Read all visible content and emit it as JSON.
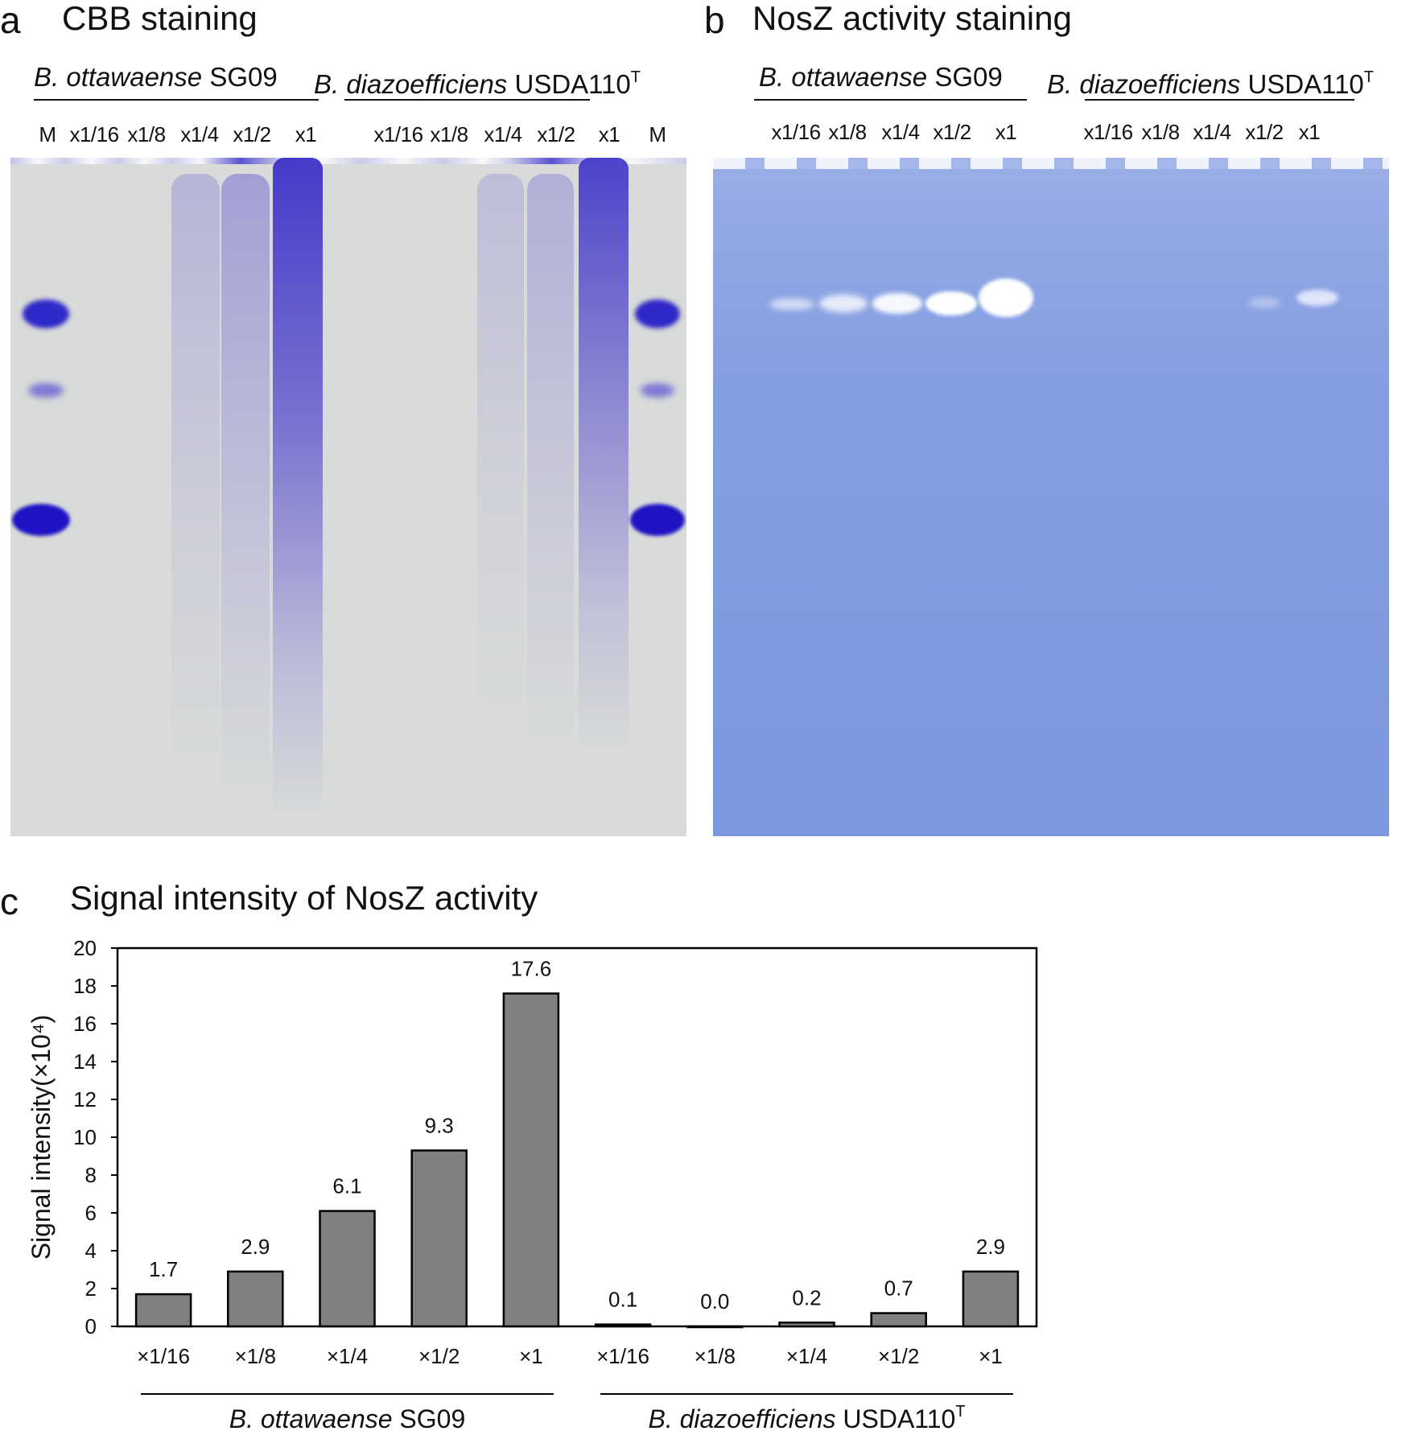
{
  "colors": {
    "cbb_gel_bg": "#d7dbd9",
    "cbb_band": "#2a1fc9",
    "nosz_gel_bg": "#7b98df",
    "nosz_band": "#ffffff",
    "bar_fill": "#808080",
    "bar_stroke": "#000000"
  },
  "panel_a": {
    "letter": "a",
    "title": "CBB staining",
    "group1": {
      "species": "B. ottawaense",
      "strain": "SG09"
    },
    "group2": {
      "species": "B. diazoefficiens",
      "strain": "USDA110",
      "superscript": "T"
    },
    "lanes": [
      "M",
      "x1/16",
      "x1/8",
      "x1/4",
      "x1/2",
      "x1",
      "x1/16",
      "x1/8",
      "x1/4",
      "x1/2",
      "x1",
      "M"
    ]
  },
  "panel_b": {
    "letter": "b",
    "title": "NosZ activity staining",
    "group1": {
      "species": "B. ottawaense",
      "strain": "SG09"
    },
    "group2": {
      "species": "B. diazoefficiens",
      "strain": "USDA110",
      "superscript": "T"
    },
    "lanes": [
      "x1/16",
      "x1/8",
      "x1/4",
      "x1/2",
      "x1",
      "x1/16",
      "x1/8",
      "x1/4",
      "x1/2",
      "x1"
    ]
  },
  "panel_c": {
    "letter": "c",
    "title": "Signal intensity of NosZ activity",
    "group1": {
      "species": "B. ottawaense",
      "strain": "SG09"
    },
    "group2": {
      "species": "B. diazoefficiens",
      "strain": "USDA110",
      "superscript": "T"
    }
  },
  "chart_data": {
    "type": "bar",
    "title": "Signal intensity of NosZ activity",
    "ylabel": "Signal intensity(×10⁴)",
    "xlabel": "",
    "ylim": [
      0,
      20
    ],
    "yticks": [
      0,
      2,
      4,
      6,
      8,
      10,
      12,
      14,
      16,
      18,
      20
    ],
    "categories": [
      "×1/16",
      "×1/8",
      "×1/4",
      "×1/2",
      "×1",
      "×1/16",
      "×1/8",
      "×1/4",
      "×1/2",
      "×1"
    ],
    "values": [
      1.7,
      2.9,
      6.1,
      9.3,
      17.6,
      0.1,
      0.0,
      0.2,
      0.7,
      2.9
    ],
    "value_labels": [
      "1.7",
      "2.9",
      "6.1",
      "9.3",
      "17.6",
      "0.1",
      "0.0",
      "0.2",
      "0.7",
      "2.9"
    ],
    "groups": [
      {
        "label": "B. ottawaense SG09",
        "indices": [
          0,
          1,
          2,
          3,
          4
        ]
      },
      {
        "label": "B. diazoefficiens USDA110T",
        "indices": [
          5,
          6,
          7,
          8,
          9
        ]
      }
    ],
    "grid": false
  }
}
